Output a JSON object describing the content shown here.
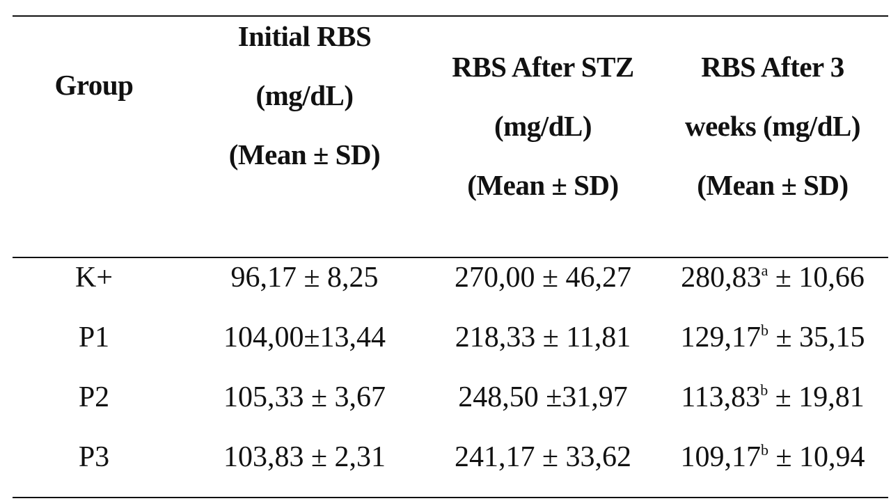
{
  "table": {
    "headers": {
      "group": [
        "Group"
      ],
      "initial": [
        "Initial RBS",
        "(mg/dL)",
        "(Mean ± SD)"
      ],
      "after_stz": [
        "RBS After STZ",
        "(mg/dL)",
        "(Mean ± SD)"
      ],
      "after_3_weeks": [
        "RBS After 3",
        "weeks (mg/dL)",
        "(Mean ± SD)"
      ]
    },
    "rows": [
      {
        "group": "K+",
        "initial": "96,17 ± 8,25",
        "after_stz": "270,00 ± 46,27",
        "after_3_weeks": {
          "value": "280,83",
          "superscript": "a",
          "rest": " ± 10,66"
        }
      },
      {
        "group": "P1",
        "initial": "104,00±13,44",
        "after_stz": "218,33 ± 11,81",
        "after_3_weeks": {
          "value": "129,17",
          "superscript": "b",
          "rest": " ± 35,15"
        }
      },
      {
        "group": "P2",
        "initial": "105,33 ± 3,67",
        "after_stz": "248,50 ±31,97",
        "after_3_weeks": {
          "value": "113,83",
          "superscript": "b",
          "rest": " ± 19,81"
        }
      },
      {
        "group": "P3",
        "initial": "103,83 ± 2,31",
        "after_stz": "241,17 ± 33,62",
        "after_3_weeks": {
          "value": "109,17",
          "superscript": "b",
          "rest": " ± 10,94"
        }
      }
    ]
  }
}
